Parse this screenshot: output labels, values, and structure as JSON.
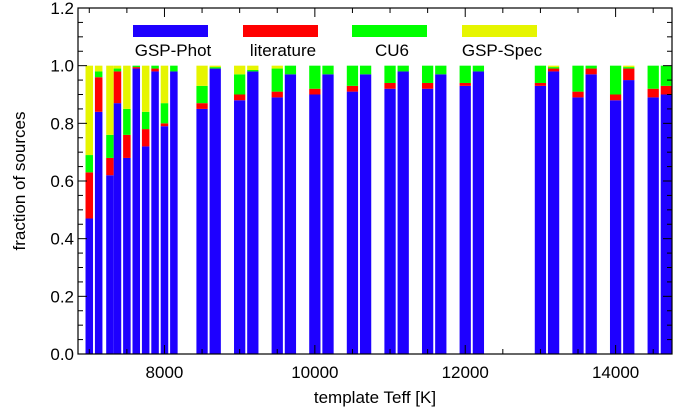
{
  "chart_data": {
    "type": "bar",
    "stacked": true,
    "xlabel": "template Teff [K]",
    "ylabel": "fraction of sources",
    "xlim": [
      6850,
      14750
    ],
    "ylim": [
      0.0,
      1.2
    ],
    "x_ticks": [
      8000,
      10000,
      12000,
      14000
    ],
    "x_tick_labels": [
      "8000",
      "10000",
      "12000",
      "14000"
    ],
    "y_ticks": [
      0.0,
      0.2,
      0.4,
      0.6,
      0.8,
      1.0,
      1.2
    ],
    "y_tick_labels": [
      "0.0",
      "0.2",
      "0.4",
      "0.6",
      "0.8",
      "1.0",
      "1.2"
    ],
    "grid": false,
    "legend_placement": "top, inside plot",
    "series": [
      {
        "name": "GSP-Phot",
        "color": "#1e00ff"
      },
      {
        "name": "literature",
        "color": "#ff0000"
      },
      {
        "name": "CU6",
        "color": "#00ff00"
      },
      {
        "name": "GSP-Spec",
        "color": "#e6f500"
      }
    ],
    "bars": [
      {
        "x": 7000,
        "width": 100,
        "values": [
          0.47,
          0.16,
          0.06,
          0.31
        ]
      },
      {
        "x": 7125,
        "width": 100,
        "values": [
          0.84,
          0.12,
          0.02,
          0.02
        ]
      },
      {
        "x": 7275,
        "width": 100,
        "values": [
          0.62,
          0.06,
          0.08,
          0.24
        ]
      },
      {
        "x": 7375,
        "width": 100,
        "values": [
          0.87,
          0.11,
          0.01,
          0.01
        ]
      },
      {
        "x": 7500,
        "width": 100,
        "values": [
          0.68,
          0.08,
          0.09,
          0.15
        ]
      },
      {
        "x": 7625,
        "width": 100,
        "values": [
          0.99,
          0.005,
          0.005,
          0.0
        ]
      },
      {
        "x": 7750,
        "width": 100,
        "values": [
          0.72,
          0.06,
          0.06,
          0.16
        ]
      },
      {
        "x": 7875,
        "width": 100,
        "values": [
          0.98,
          0.01,
          0.01,
          0.0
        ]
      },
      {
        "x": 8000,
        "width": 100,
        "values": [
          0.79,
          0.01,
          0.07,
          0.13
        ]
      },
      {
        "x": 8125,
        "width": 100,
        "values": [
          0.98,
          0.0,
          0.02,
          0.0
        ]
      },
      {
        "x": 8500,
        "width": 150,
        "values": [
          0.85,
          0.02,
          0.06,
          0.07
        ]
      },
      {
        "x": 8675,
        "width": 150,
        "values": [
          0.99,
          0.0,
          0.005,
          0.005
        ]
      },
      {
        "x": 9000,
        "width": 150,
        "values": [
          0.88,
          0.02,
          0.07,
          0.03
        ]
      },
      {
        "x": 9175,
        "width": 150,
        "values": [
          0.98,
          0.0,
          0.005,
          0.015
        ]
      },
      {
        "x": 9500,
        "width": 150,
        "values": [
          0.89,
          0.02,
          0.08,
          0.01
        ]
      },
      {
        "x": 9675,
        "width": 150,
        "values": [
          0.97,
          0.0,
          0.03,
          0.0
        ]
      },
      {
        "x": 10000,
        "width": 150,
        "values": [
          0.9,
          0.02,
          0.08,
          0.0
        ]
      },
      {
        "x": 10175,
        "width": 150,
        "values": [
          0.97,
          0.0,
          0.03,
          0.0
        ]
      },
      {
        "x": 10500,
        "width": 150,
        "values": [
          0.91,
          0.02,
          0.07,
          0.0
        ]
      },
      {
        "x": 10675,
        "width": 150,
        "values": [
          0.97,
          0.0,
          0.03,
          0.0
        ]
      },
      {
        "x": 11000,
        "width": 150,
        "values": [
          0.92,
          0.02,
          0.06,
          0.0
        ]
      },
      {
        "x": 11175,
        "width": 150,
        "values": [
          0.98,
          0.0,
          0.02,
          0.0
        ]
      },
      {
        "x": 11500,
        "width": 150,
        "values": [
          0.92,
          0.02,
          0.06,
          0.0
        ]
      },
      {
        "x": 11675,
        "width": 150,
        "values": [
          0.97,
          0.0,
          0.03,
          0.0
        ]
      },
      {
        "x": 12000,
        "width": 150,
        "values": [
          0.93,
          0.01,
          0.06,
          0.0
        ]
      },
      {
        "x": 12175,
        "width": 150,
        "values": [
          0.98,
          0.0,
          0.02,
          0.0
        ]
      },
      {
        "x": 13000,
        "width": 150,
        "values": [
          0.93,
          0.01,
          0.06,
          0.0
        ]
      },
      {
        "x": 13175,
        "width": 150,
        "values": [
          0.98,
          0.01,
          0.005,
          0.005
        ]
      },
      {
        "x": 13500,
        "width": 150,
        "values": [
          0.89,
          0.02,
          0.09,
          0.0
        ]
      },
      {
        "x": 13675,
        "width": 150,
        "values": [
          0.97,
          0.02,
          0.01,
          0.0
        ]
      },
      {
        "x": 14000,
        "width": 150,
        "values": [
          0.88,
          0.02,
          0.1,
          0.0
        ]
      },
      {
        "x": 14175,
        "width": 150,
        "values": [
          0.95,
          0.04,
          0.005,
          0.005
        ]
      },
      {
        "x": 14500,
        "width": 150,
        "values": [
          0.89,
          0.03,
          0.08,
          0.0
        ]
      },
      {
        "x": 14675,
        "width": 150,
        "values": [
          0.9,
          0.03,
          0.07,
          0.0
        ]
      }
    ]
  }
}
